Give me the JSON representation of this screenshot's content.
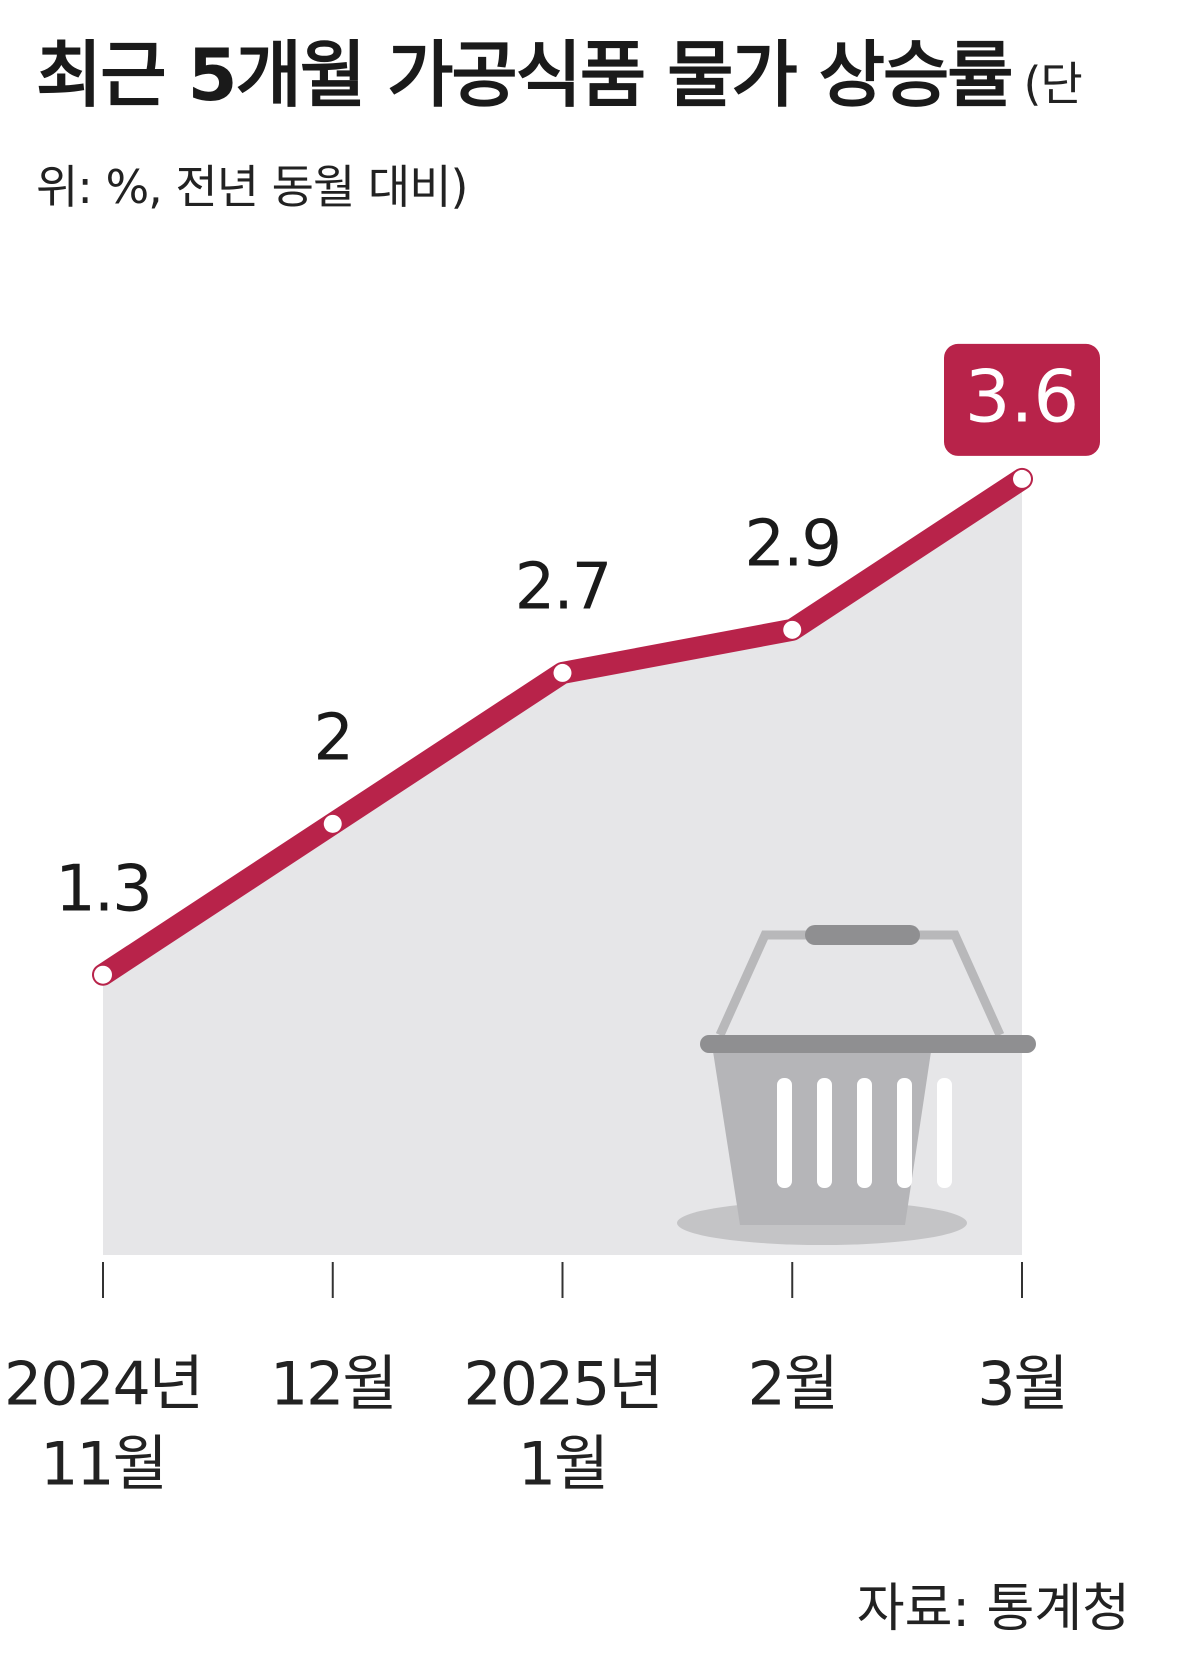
{
  "chart_data": {
    "type": "line",
    "title": "최근 5개월 가공식품 물가 상승률",
    "subtitle": "(단위: %, 전년 동월 대비)",
    "categories": [
      [
        "2024년",
        "11월"
      ],
      [
        "12월"
      ],
      [
        "2025년",
        "1월"
      ],
      [
        "2월"
      ],
      [
        "3월"
      ]
    ],
    "values": [
      1.3,
      2.0,
      2.7,
      2.9,
      3.6
    ],
    "color": "#b8234a",
    "area_color": "#e6e6e8",
    "ylim": [
      0,
      4.3
    ],
    "source": "자료: 통계청"
  }
}
